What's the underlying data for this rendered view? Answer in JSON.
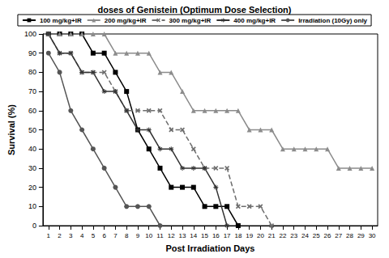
{
  "chart_data": {
    "type": "line",
    "title": "doses of Genistein (Optimum Dose Selection)",
    "x_label": "Post Irradiation Days",
    "y_label": "Survival (%)",
    "categories": [
      1,
      2,
      3,
      4,
      5,
      6,
      7,
      8,
      9,
      10,
      11,
      12,
      13,
      14,
      15,
      16,
      17,
      18,
      19,
      20,
      21,
      22,
      23,
      24,
      25,
      26,
      27,
      28,
      29,
      30
    ],
    "ylim": [
      0,
      100
    ],
    "yticks": [
      0,
      10,
      20,
      30,
      40,
      50,
      60,
      70,
      80,
      90,
      100
    ],
    "grid": false,
    "legend": "top",
    "series": [
      {
        "name": "100 mg/kg+IR",
        "color": "#000000",
        "marker": "square",
        "line_style": "solid",
        "values": [
          100,
          100,
          100,
          100,
          90,
          90,
          80,
          70,
          50,
          40,
          30,
          20,
          20,
          20,
          10,
          10,
          10,
          0,
          null,
          null,
          null,
          null,
          null,
          null,
          null,
          null,
          null,
          null,
          null,
          null
        ]
      },
      {
        "name": "200 mg/kg+IR",
        "color": "#8c8c8c",
        "marker": "triangle",
        "line_style": "solid",
        "values": [
          100,
          100,
          100,
          100,
          100,
          100,
          90,
          90,
          90,
          90,
          80,
          80,
          70,
          60,
          60,
          60,
          60,
          60,
          50,
          50,
          50,
          40,
          40,
          40,
          40,
          40,
          30,
          30,
          30,
          30
        ]
      },
      {
        "name": "300 mg/kg+IR",
        "color": "#6e6e6e",
        "marker": "x",
        "line_style": "dashed",
        "values": [
          100,
          90,
          90,
          80,
          80,
          80,
          70,
          60,
          60,
          60,
          60,
          50,
          50,
          40,
          30,
          30,
          30,
          10,
          10,
          10,
          0,
          null,
          null,
          null,
          null,
          null,
          null,
          null,
          null,
          null
        ]
      },
      {
        "name": "400 mg/kg+IR",
        "color": "#333333",
        "marker": "asterisk",
        "line_style": "solid",
        "values": [
          100,
          90,
          90,
          80,
          80,
          70,
          70,
          60,
          50,
          50,
          40,
          40,
          30,
          30,
          30,
          20,
          0,
          null,
          null,
          null,
          null,
          null,
          null,
          null,
          null,
          null,
          null,
          null,
          null,
          null
        ]
      },
      {
        "name": "Irradiation (10Gy) only",
        "color": "#555555",
        "marker": "circle",
        "line_style": "solid",
        "values": [
          90,
          80,
          60,
          50,
          40,
          30,
          20,
          10,
          10,
          10,
          0,
          null,
          null,
          null,
          null,
          null,
          null,
          null,
          null,
          null,
          null,
          null,
          null,
          null,
          null,
          null,
          null,
          null,
          null,
          null
        ]
      }
    ]
  }
}
